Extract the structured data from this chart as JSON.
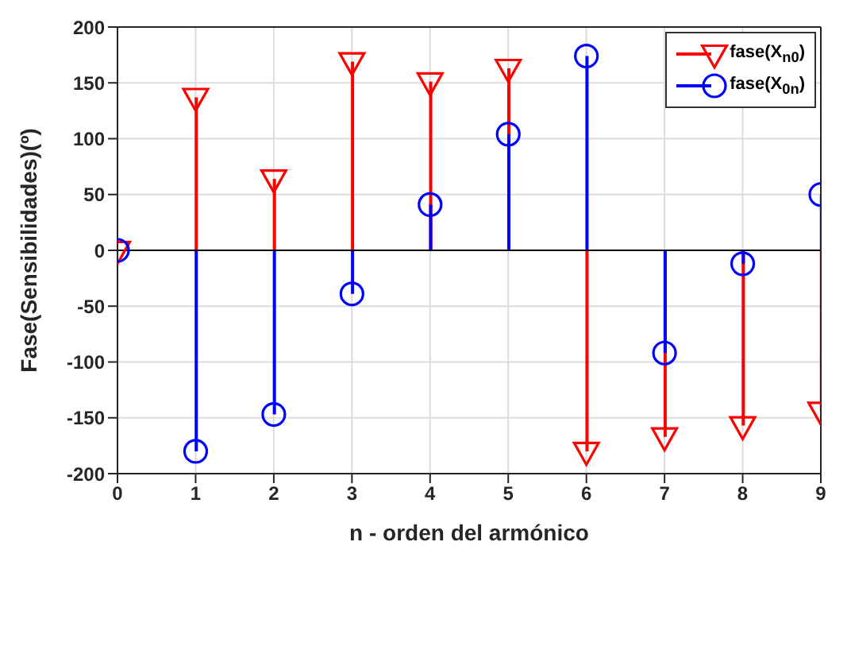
{
  "chart_data": {
    "type": "lollipop",
    "xlabel": "n - orden del armónico",
    "ylabel": "Fase(Sensibilidades)(º)",
    "x": [
      0,
      1,
      2,
      3,
      4,
      5,
      6,
      7,
      8,
      9
    ],
    "series": [
      {
        "name": "fase(X$_{n0}$)",
        "color": "#ff0000",
        "marker": "triangle",
        "values": [
          0,
          137,
          64,
          169,
          151,
          163,
          -180,
          -167,
          -157,
          -144
        ]
      },
      {
        "name": "fase(X$_{0n}$)",
        "color": "#0000ff",
        "marker": "circle",
        "values": [
          0,
          -180,
          -147,
          -39,
          41,
          104,
          174,
          -92,
          -12,
          50
        ]
      }
    ],
    "xlim": [
      0,
      9
    ],
    "xticks": [
      0,
      1,
      2,
      3,
      4,
      5,
      6,
      7,
      8,
      9
    ],
    "ylim": [
      -200,
      200
    ],
    "yticks": [
      -200,
      -150,
      -100,
      -50,
      0,
      50,
      100,
      150,
      200
    ],
    "ref_lines": [
      {
        "axis": "y",
        "value": 0,
        "color": "#000000"
      }
    ],
    "grid": true,
    "legend": "top right"
  }
}
